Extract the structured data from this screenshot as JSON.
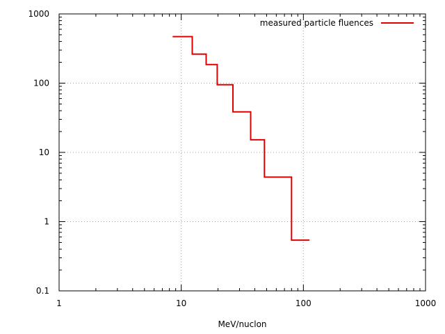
{
  "chart_data": {
    "type": "line",
    "step": true,
    "xlabel": "MeV/nuclon",
    "ylabel": "",
    "title": "",
    "xscale": "log",
    "yscale": "log",
    "xlim": [
      1,
      1000
    ],
    "ylim": [
      0.1,
      1000
    ],
    "grid": true,
    "legend_position": "top-right",
    "xticks": [
      {
        "value": 1,
        "label": "1"
      },
      {
        "value": 10,
        "label": "10"
      },
      {
        "value": 100,
        "label": "100"
      },
      {
        "value": 1000,
        "label": "1000"
      }
    ],
    "yticks": [
      {
        "value": 0.1,
        "label": "0.1"
      },
      {
        "value": 1,
        "label": "1"
      },
      {
        "value": 10,
        "label": "10"
      },
      {
        "value": 100,
        "label": "100"
      },
      {
        "value": 1000,
        "label": "1000"
      }
    ],
    "series": [
      {
        "name": "measured particle fluences",
        "color": "#e00000",
        "steps": [
          {
            "x_start": 8.5,
            "x_end": 12.3,
            "y": 470
          },
          {
            "x_start": 12.3,
            "x_end": 16.0,
            "y": 263
          },
          {
            "x_start": 16.0,
            "x_end": 19.7,
            "y": 186
          },
          {
            "x_start": 19.7,
            "x_end": 26.5,
            "y": 95
          },
          {
            "x_start": 26.5,
            "x_end": 37.0,
            "y": 38.5
          },
          {
            "x_start": 37.0,
            "x_end": 48.0,
            "y": 15.2
          },
          {
            "x_start": 48.0,
            "x_end": 80.0,
            "y": 4.4
          },
          {
            "x_start": 80.0,
            "x_end": 112.0,
            "y": 0.54
          }
        ]
      }
    ]
  }
}
